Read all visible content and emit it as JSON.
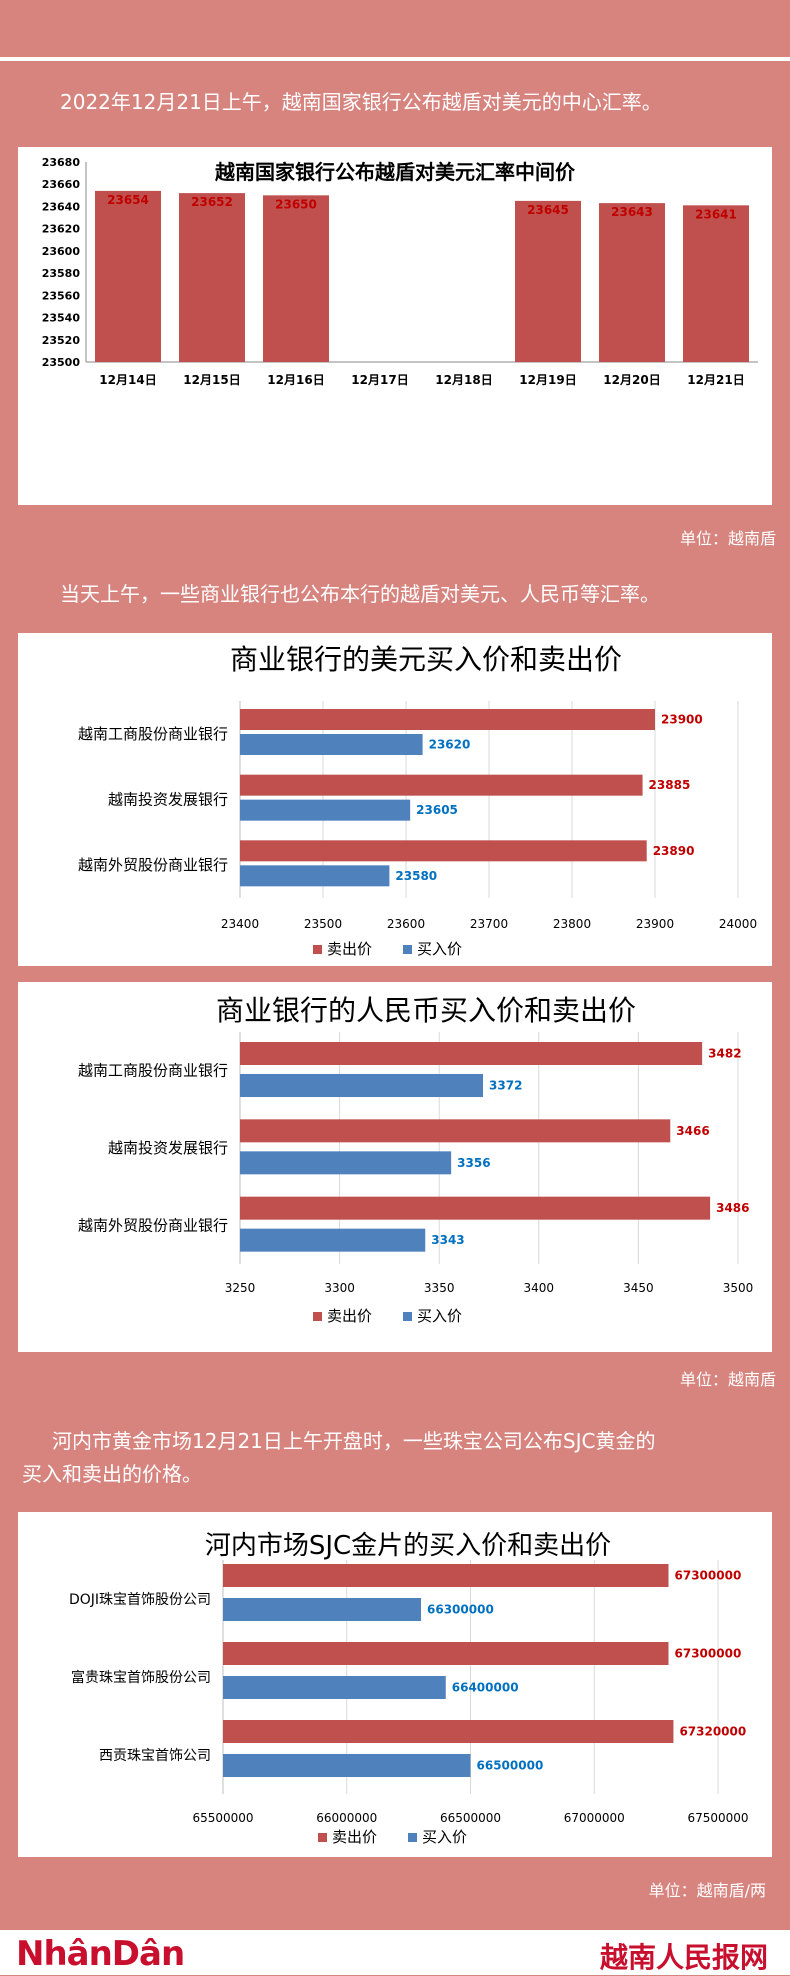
{
  "intro1": "2022年12月21日上午，越南国家银行公布越盾对美元的中心汇率。",
  "intro2": "当天上午，一些商业银行也公布本行的越盾对美元、人民币等汇率。",
  "intro3_line1": "河内市黄金市场12月21日上午开盘时，一些珠宝公司公布SJC黄金的",
  "intro3_line2": "买入和卖出的价格。",
  "unit1": "单位：越南盾",
  "unit2": "单位：越南盾",
  "unit3": "单位：越南盾/两",
  "footer": {
    "logo": "NhânDân",
    "brand": "越南人民报网"
  },
  "colors": {
    "sell": "#c0504d",
    "buy": "#4f81bd",
    "sell_label": "#c00000",
    "buy_label": "#0070c0",
    "background": "#d7847f"
  },
  "chart_data": [
    {
      "type": "bar",
      "title": "越南国家银行公布越盾对美元汇率中间价",
      "categories": [
        "12月14日",
        "12月15日",
        "12月16日",
        "12月17日",
        "12月18日",
        "12月19日",
        "12月20日",
        "12月21日"
      ],
      "values": [
        23654,
        23652,
        23650,
        null,
        null,
        23645,
        23643,
        23641
      ],
      "ylim": [
        23500,
        23680
      ],
      "yticks": [
        23500,
        23520,
        23540,
        23560,
        23580,
        23600,
        23620,
        23640,
        23660,
        23680
      ],
      "xlabel": "",
      "ylabel": "",
      "grid": false
    },
    {
      "type": "bar",
      "orientation": "horizontal",
      "title": "商业银行的美元买入价和卖出价",
      "categories": [
        "越南工商股份商业银行",
        "越南投资发展银行",
        "越南外贸股份商业银行"
      ],
      "series": [
        {
          "name": "卖出价",
          "values": [
            23900,
            23885,
            23890
          ]
        },
        {
          "name": "买入价",
          "values": [
            23620,
            23605,
            23580
          ]
        }
      ],
      "xlim": [
        23400,
        24000
      ],
      "xticks": [
        23400,
        23500,
        23600,
        23700,
        23800,
        23900,
        24000
      ],
      "legend": "bottom",
      "grid": true
    },
    {
      "type": "bar",
      "orientation": "horizontal",
      "title": "商业银行的人民币买入价和卖出价",
      "categories": [
        "越南工商股份商业银行",
        "越南投资发展银行",
        "越南外贸股份商业银行"
      ],
      "series": [
        {
          "name": "卖出价",
          "values": [
            3482,
            3466,
            3486
          ]
        },
        {
          "name": "买入价",
          "values": [
            3372,
            3356,
            3343
          ]
        }
      ],
      "xlim": [
        3250,
        3500
      ],
      "xticks": [
        3250,
        3300,
        3350,
        3400,
        3450,
        3500
      ],
      "legend": "bottom",
      "grid": true
    },
    {
      "type": "bar",
      "orientation": "horizontal",
      "title": "河内市场SJC金片的买入价和卖出价",
      "categories": [
        "DOJI珠宝首饰股份公司",
        "富贵珠宝首饰股份公司",
        "西贡珠宝首饰公司"
      ],
      "series": [
        {
          "name": "卖出价",
          "values": [
            67300000,
            67300000,
            67320000
          ]
        },
        {
          "name": "买入价",
          "values": [
            66300000,
            66400000,
            66500000
          ]
        }
      ],
      "xlim": [
        65500000,
        67500000
      ],
      "xticks": [
        65500000,
        66000000,
        66500000,
        67000000,
        67500000
      ],
      "legend": "bottom",
      "grid": true
    }
  ]
}
